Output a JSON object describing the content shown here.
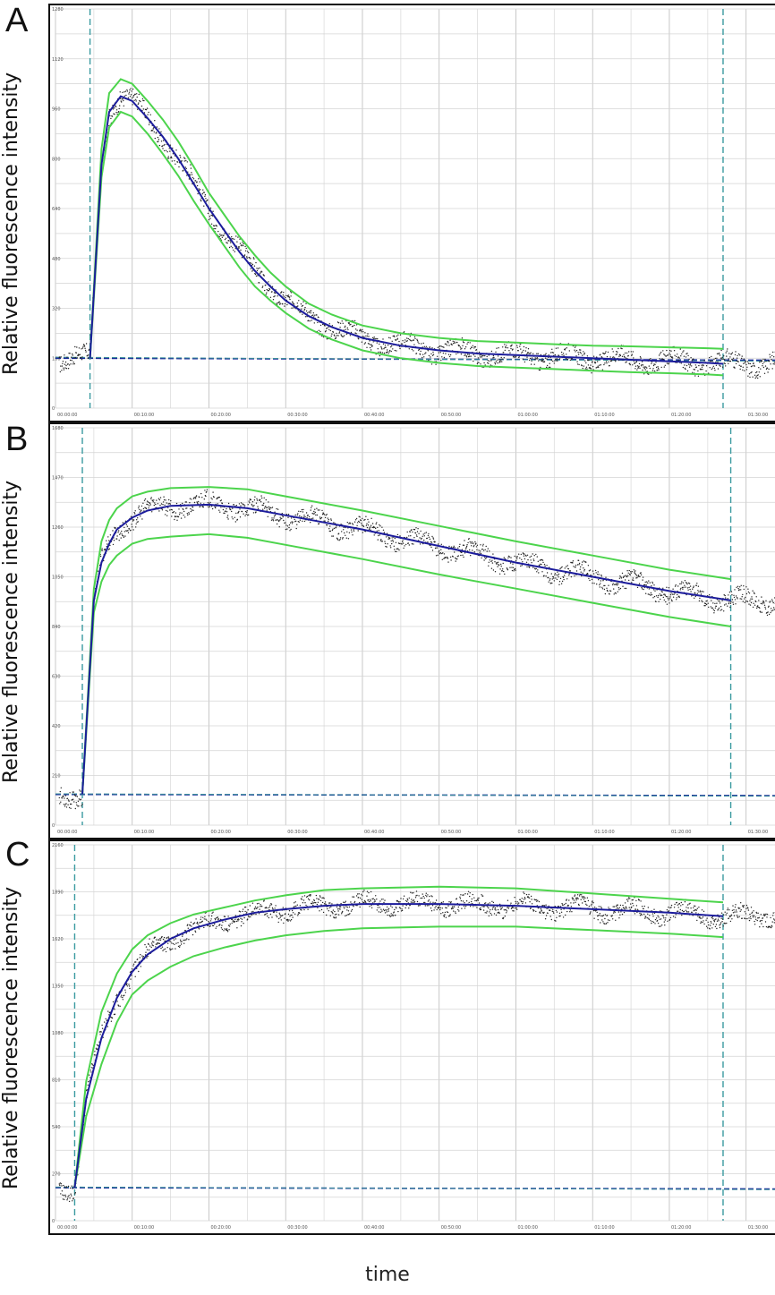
{
  "figure": {
    "xlabel": "time"
  },
  "panels": [
    {
      "letter": "A",
      "ylabel": "Relative fluorescence intensity"
    },
    {
      "letter": "B",
      "ylabel": "Relative fluorescence intensity"
    },
    {
      "letter": "C",
      "ylabel": "Relative fluorescence intensity"
    }
  ],
  "chart_data": [
    {
      "type": "line",
      "title": "",
      "xlabel": "",
      "ylabel": "Relative fluorescence intensity",
      "x_ticks": [
        "00:00:00",
        "00:10:00",
        "00:20:00",
        "00:30:00",
        "00:40:00",
        "00:50:00",
        "01:00:00",
        "01:10:00",
        "01:20:00",
        "01:30:00"
      ],
      "y_ticks": [
        0,
        160,
        320,
        480,
        640,
        800,
        960,
        1120,
        1280
      ],
      "xlim_min": [
        0,
        94
      ],
      "ylim": [
        0,
        1280
      ],
      "baseline": 160,
      "start_min": 4.5,
      "end_min": 87,
      "series": [],
      "fit_x_min": [
        4.5,
        6,
        7,
        8.5,
        10,
        12,
        14,
        16,
        18,
        20,
        22,
        24,
        26,
        28,
        30,
        33,
        36,
        40,
        45,
        50,
        55,
        60,
        65,
        70,
        75,
        80,
        85,
        87
      ],
      "fit_y": [
        160,
        780,
        950,
        1000,
        985,
        930,
        870,
        800,
        720,
        640,
        570,
        500,
        440,
        390,
        345,
        295,
        260,
        225,
        200,
        185,
        175,
        170,
        165,
        160,
        155,
        150,
        145,
        142
      ],
      "upper_y": [
        160,
        830,
        1010,
        1055,
        1040,
        985,
        925,
        855,
        775,
        690,
        620,
        550,
        490,
        435,
        390,
        335,
        300,
        265,
        240,
        225,
        215,
        210,
        205,
        200,
        198,
        195,
        192,
        190
      ],
      "lower_y": [
        160,
        740,
        900,
        950,
        935,
        880,
        815,
        745,
        665,
        590,
        520,
        450,
        390,
        345,
        305,
        255,
        220,
        185,
        160,
        145,
        135,
        130,
        125,
        120,
        115,
        112,
        108,
        105
      ],
      "grid": true
    },
    {
      "type": "line",
      "title": "",
      "xlabel": "",
      "ylabel": "Relative fluorescence intensity",
      "x_ticks": [
        "00:00:00",
        "00:10:00",
        "00:20:00",
        "00:30:00",
        "00:40:00",
        "00:50:00",
        "01:00:00",
        "01:10:00",
        "01:20:00",
        "01:30:00"
      ],
      "y_ticks": [
        0,
        210,
        420,
        630,
        840,
        1050,
        1260,
        1470,
        1680
      ],
      "xlim_min": [
        0,
        94
      ],
      "ylim": [
        0,
        1680
      ],
      "baseline": 130,
      "start_min": 3.5,
      "end_min": 88,
      "series": [],
      "fit_x_min": [
        3.5,
        5,
        6,
        7,
        8,
        10,
        12,
        15,
        20,
        25,
        30,
        40,
        50,
        60,
        70,
        80,
        88
      ],
      "fit_y": [
        130,
        950,
        1110,
        1190,
        1250,
        1300,
        1330,
        1350,
        1355,
        1340,
        1310,
        1250,
        1180,
        1110,
        1050,
        990,
        950
      ],
      "upper_y": [
        130,
        1000,
        1200,
        1290,
        1340,
        1390,
        1410,
        1425,
        1430,
        1420,
        1390,
        1330,
        1265,
        1200,
        1140,
        1080,
        1040
      ],
      "lower_y": [
        130,
        900,
        1030,
        1100,
        1140,
        1190,
        1210,
        1220,
        1230,
        1215,
        1185,
        1125,
        1060,
        1000,
        940,
        880,
        840
      ],
      "grid": true
    },
    {
      "type": "line",
      "title": "",
      "xlabel": "",
      "ylabel": "Relative fluorescence intensity",
      "x_ticks": [
        "00:00:00",
        "00:10:00",
        "00:20:00",
        "00:30:00",
        "00:40:00",
        "00:50:00",
        "01:00:00",
        "01:10:00",
        "01:20:00",
        "01:30:00"
      ],
      "y_ticks": [
        0,
        270,
        540,
        810,
        1080,
        1350,
        1620,
        1890,
        2160
      ],
      "xlim_min": [
        0,
        94
      ],
      "ylim": [
        0,
        2160
      ],
      "baseline": 190,
      "start_min": 2.5,
      "end_min": 87,
      "series": [],
      "fit_x_min": [
        2.5,
        4,
        6,
        8,
        10,
        12,
        15,
        18,
        22,
        26,
        30,
        35,
        40,
        50,
        60,
        70,
        80,
        87
      ],
      "fit_y": [
        190,
        700,
        1050,
        1280,
        1430,
        1530,
        1620,
        1680,
        1730,
        1770,
        1790,
        1810,
        1820,
        1820,
        1810,
        1790,
        1770,
        1750
      ],
      "upper_y": [
        190,
        800,
        1200,
        1420,
        1560,
        1640,
        1710,
        1760,
        1800,
        1840,
        1870,
        1900,
        1910,
        1920,
        1910,
        1880,
        1850,
        1830
      ],
      "lower_y": [
        190,
        600,
        900,
        1140,
        1300,
        1380,
        1460,
        1520,
        1570,
        1610,
        1640,
        1665,
        1680,
        1690,
        1690,
        1670,
        1650,
        1630
      ],
      "grid": true
    }
  ]
}
